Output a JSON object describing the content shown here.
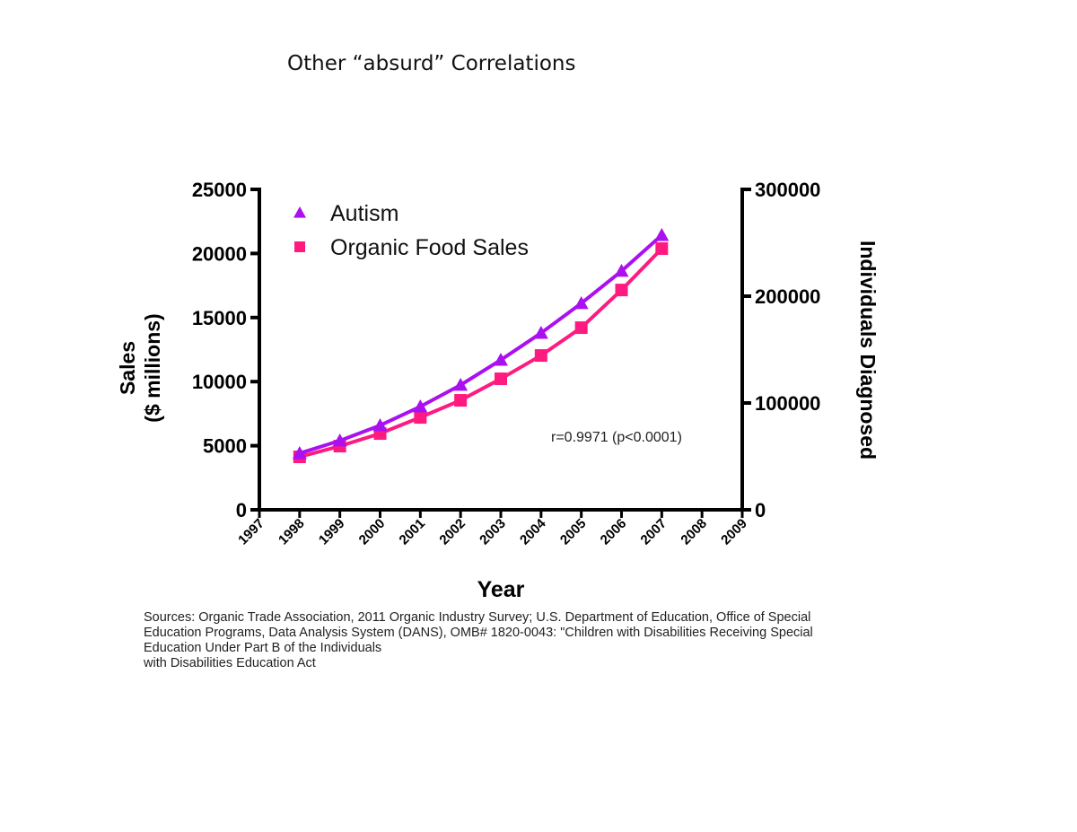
{
  "page": {
    "title": "Other “absurd” Correlations"
  },
  "sources": [
    "Sources: Organic Trade Association,  2011 Organic Industry Survey; U.S. Department of Education, Office of Special",
    "Education Programs, Data Analysis System (DANS), OMB# 1820-0043: \"Children with Disabilities Receiving Special",
    "Education Under Part B of the Individuals",
    "with Disabilities Education Act"
  ],
  "chart_data": {
    "type": "line",
    "xlabel": "Year",
    "ylabel": "Sales\n($ millions)",
    "y2label": "Individuals Diagnosed",
    "xlim": [
      1997,
      2009
    ],
    "ylim": [
      0,
      25000
    ],
    "y2lim": [
      0,
      300000
    ],
    "x_ticks": [
      "1997",
      "1998",
      "1999",
      "2000",
      "2001",
      "2002",
      "2003",
      "2004",
      "2005",
      "2006",
      "2007",
      "2008",
      "2009"
    ],
    "y_ticks": [
      "0",
      "5000",
      "10000",
      "15000",
      "20000",
      "25000"
    ],
    "y2_ticks": [
      "0",
      "100000",
      "200000",
      "300000"
    ],
    "grid": false,
    "legend_position": "top-left",
    "annotation": "r=0.9971 (p<0.0001)",
    "x": [
      1998,
      1999,
      2000,
      2001,
      2002,
      2003,
      2004,
      2005,
      2006,
      2007
    ],
    "series": [
      {
        "name": "Autism",
        "axis": "right",
        "marker": "triangle",
        "color": "#aa10f0",
        "values": [
          52900,
          64700,
          79000,
          96600,
          116800,
          140300,
          165500,
          193300,
          223500,
          257100
        ]
      },
      {
        "name": "Organic Food Sales",
        "axis": "left",
        "marker": "square",
        "color": "#ff1a80",
        "values": [
          4130,
          4970,
          5950,
          7210,
          8540,
          10220,
          12040,
          14210,
          17150,
          20380
        ]
      }
    ]
  }
}
